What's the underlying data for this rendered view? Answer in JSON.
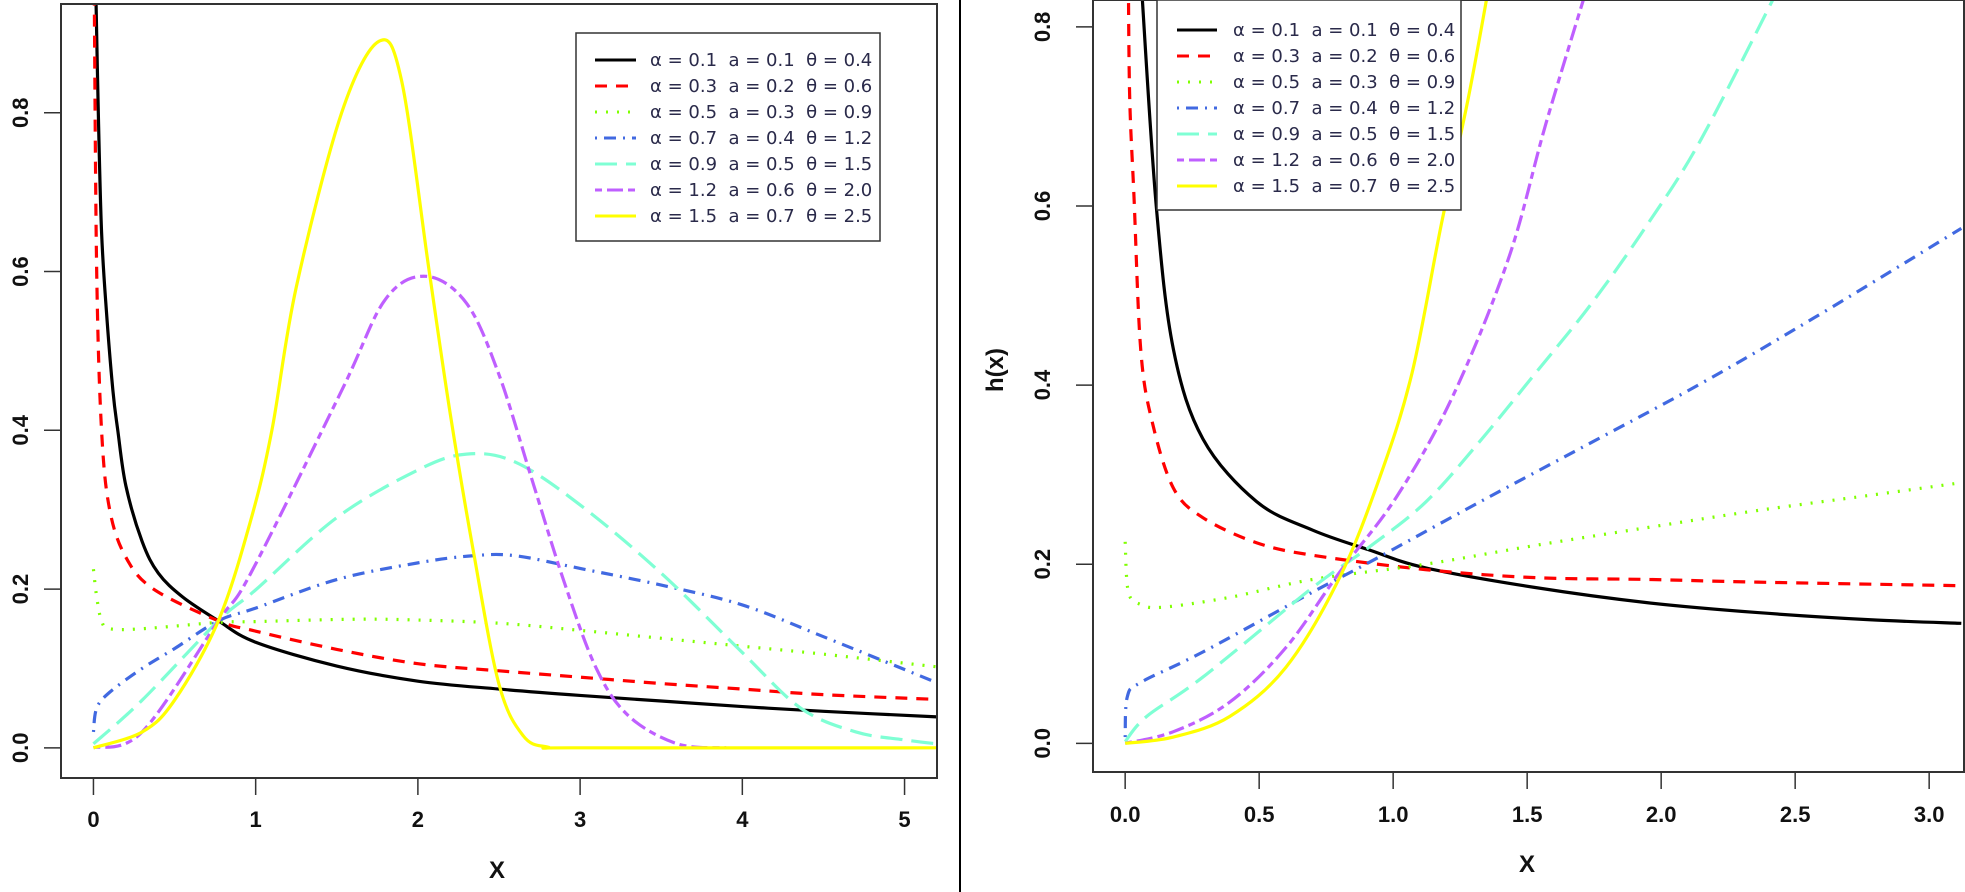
{
  "chart_data": [
    {
      "type": "line",
      "title": "",
      "xlabel": "X",
      "ylabel": "",
      "xlim": [
        -0.2,
        5.2
      ],
      "ylim": [
        -0.038,
        0.937
      ],
      "xticks": [
        0,
        1,
        2,
        3,
        4,
        5
      ],
      "xtick_labels": [
        "0",
        "1",
        "2",
        "3",
        "4",
        "5"
      ],
      "yticks": [
        0,
        0.2,
        0.4,
        0.6,
        0.8
      ],
      "ytick_labels": [
        "0.0",
        "0.2",
        "0.4",
        "0.6",
        "0.8"
      ],
      "grid": false,
      "legend": "top-right",
      "series": [
        {
          "name": "α = 0.1  a = 0.1  θ = 0.4",
          "color": "#000000",
          "dash": "solid",
          "points": [
            [
              0.015,
              0.95
            ],
            [
              0.03,
              0.8
            ],
            [
              0.05,
              0.65
            ],
            [
              0.08,
              0.55
            ],
            [
              0.12,
              0.45
            ],
            [
              0.15,
              0.4
            ],
            [
              0.2,
              0.33
            ],
            [
              0.3,
              0.26
            ],
            [
              0.4,
              0.22
            ],
            [
              0.55,
              0.19
            ],
            [
              0.77,
              0.16
            ],
            [
              1,
              0.133
            ],
            [
              1.5,
              0.103
            ],
            [
              2,
              0.084
            ],
            [
              2.5,
              0.074
            ],
            [
              3,
              0.066
            ],
            [
              3.5,
              0.059
            ],
            [
              4,
              0.052
            ],
            [
              4.5,
              0.046
            ],
            [
              5.2,
              0.039
            ]
          ]
        },
        {
          "name": "α = 0.3  a = 0.2  θ = 0.6",
          "color": "#ff0000",
          "dash": "dashed",
          "points": [
            [
              0.005,
              0.95
            ],
            [
              0.02,
              0.6
            ],
            [
              0.05,
              0.4
            ],
            [
              0.1,
              0.3
            ],
            [
              0.2,
              0.24
            ],
            [
              0.37,
              0.2
            ],
            [
              0.77,
              0.16
            ],
            [
              1,
              0.147
            ],
            [
              1.5,
              0.124
            ],
            [
              2,
              0.106
            ],
            [
              2.5,
              0.097
            ],
            [
              3,
              0.089
            ],
            [
              3.5,
              0.081
            ],
            [
              4,
              0.074
            ],
            [
              4.5,
              0.067
            ],
            [
              5.2,
              0.061
            ]
          ]
        },
        {
          "name": "α = 0.5  a = 0.3  θ = 0.9",
          "color": "#7fff00",
          "dash": "dotted",
          "points": [
            [
              0,
              0.225
            ],
            [
              0.02,
              0.19
            ],
            [
              0.05,
              0.16
            ],
            [
              0.1,
              0.15
            ],
            [
              0.3,
              0.15
            ],
            [
              0.77,
              0.158
            ],
            [
              1,
              0.159
            ],
            [
              1.6,
              0.162
            ],
            [
              2,
              0.161
            ],
            [
              2.5,
              0.157
            ],
            [
              3,
              0.148
            ],
            [
              3.5,
              0.138
            ],
            [
              4,
              0.128
            ],
            [
              4.5,
              0.118
            ],
            [
              5.2,
              0.102
            ]
          ]
        },
        {
          "name": "α = 0.7  a = 0.4  θ = 1.2",
          "color": "#4169e1",
          "dash": "dotdash",
          "points": [
            [
              0,
              0.02
            ],
            [
              0.02,
              0.05
            ],
            [
              0.1,
              0.07
            ],
            [
              0.3,
              0.1
            ],
            [
              0.5,
              0.125
            ],
            [
              0.77,
              0.16
            ],
            [
              1,
              0.176
            ],
            [
              1.5,
              0.212
            ],
            [
              2,
              0.233
            ],
            [
              2.34,
              0.242
            ],
            [
              2.6,
              0.242
            ],
            [
              3,
              0.226
            ],
            [
              3.5,
              0.205
            ],
            [
              4,
              0.18
            ],
            [
              4.5,
              0.14
            ],
            [
              5.2,
              0.082
            ]
          ]
        },
        {
          "name": "α = 0.9  a = 0.5  θ = 1.5",
          "color": "#7fffd4",
          "dash": "longdash",
          "points": [
            [
              0,
              0.005
            ],
            [
              0.3,
              0.06
            ],
            [
              0.77,
              0.16
            ],
            [
              1,
              0.199
            ],
            [
              1.5,
              0.29
            ],
            [
              2,
              0.35
            ],
            [
              2.3,
              0.37
            ],
            [
              2.6,
              0.36
            ],
            [
              3,
              0.306
            ],
            [
              3.5,
              0.22
            ],
            [
              4,
              0.12
            ],
            [
              4.36,
              0.05
            ],
            [
              4.7,
              0.02
            ],
            [
              5,
              0.01
            ],
            [
              5.2,
              0.005
            ]
          ]
        },
        {
          "name": "α = 1.2  a = 0.6  θ = 2.0",
          "color": "#bf5fff",
          "dash": "twodash",
          "points": [
            [
              0,
              0
            ],
            [
              0.3,
              0.02
            ],
            [
              0.77,
              0.16
            ],
            [
              0.97,
              0.22
            ],
            [
              1.53,
              0.45
            ],
            [
              1.8,
              0.565
            ],
            [
              2.05,
              0.594
            ],
            [
              2.3,
              0.56
            ],
            [
              2.5,
              0.47
            ],
            [
              2.7,
              0.34
            ],
            [
              2.9,
              0.21
            ],
            [
              3.1,
              0.1
            ],
            [
              3.3,
              0.04
            ],
            [
              3.6,
              0.005
            ],
            [
              3.9,
              0
            ]
          ]
        },
        {
          "name": "α = 1.5  a = 0.7  θ = 2.5",
          "color": "#ffff00",
          "dash": "solid",
          "points": [
            [
              0,
              0
            ],
            [
              0.3,
              0.02
            ],
            [
              0.5,
              0.06
            ],
            [
              0.77,
              0.16
            ],
            [
              0.97,
              0.287
            ],
            [
              1.1,
              0.4
            ],
            [
              1.25,
              0.58
            ],
            [
              1.53,
              0.8
            ],
            [
              1.76,
              0.89
            ],
            [
              1.9,
              0.84
            ],
            [
              2.07,
              0.6
            ],
            [
              2.2,
              0.42
            ],
            [
              2.34,
              0.25
            ],
            [
              2.5,
              0.08
            ],
            [
              2.65,
              0.015
            ],
            [
              2.8,
              0.001
            ],
            [
              3,
              0
            ],
            [
              5.2,
              0
            ]
          ]
        }
      ]
    },
    {
      "type": "line",
      "title": "",
      "xlabel": "X",
      "ylabel": "h(x)",
      "xlim": [
        -0.12,
        3.13
      ],
      "ylim": [
        -0.032,
        0.83
      ],
      "xticks": [
        0,
        0.5,
        1,
        1.5,
        2,
        2.5,
        3
      ],
      "xtick_labels": [
        "0.0",
        "0.5",
        "1.0",
        "1.5",
        "2.0",
        "2.5",
        "3.0"
      ],
      "yticks": [
        0,
        0.2,
        0.4,
        0.6,
        0.8
      ],
      "ytick_labels": [
        "0.0",
        "0.2",
        "0.4",
        "0.6",
        "0.8"
      ],
      "grid": false,
      "legend": "top-left",
      "series": [
        {
          "name": "α = 0.1  a = 0.1  θ = 0.4",
          "color": "#000000",
          "dash": "solid",
          "points": [
            [
              0.06,
              0.85
            ],
            [
              0.116,
              0.6
            ],
            [
              0.18,
              0.44
            ],
            [
              0.29,
              0.34
            ],
            [
              0.49,
              0.27
            ],
            [
              0.7,
              0.238
            ],
            [
              0.91,
              0.216
            ],
            [
              1.12,
              0.196
            ],
            [
              1.53,
              0.174
            ],
            [
              1.95,
              0.157
            ],
            [
              2.36,
              0.146
            ],
            [
              2.78,
              0.138
            ],
            [
              3.12,
              0.134
            ]
          ]
        },
        {
          "name": "α = 0.3  a = 0.2  θ = 0.6",
          "color": "#ff0000",
          "dash": "dashed",
          "points": [
            [
              0.012,
              0.85
            ],
            [
              0.017,
              0.72
            ],
            [
              0.033,
              0.61
            ],
            [
              0.058,
              0.44
            ],
            [
              0.1,
              0.36
            ],
            [
              0.18,
              0.285
            ],
            [
              0.29,
              0.252
            ],
            [
              0.49,
              0.224
            ],
            [
              0.7,
              0.21
            ],
            [
              1.12,
              0.194
            ],
            [
              1.53,
              0.185
            ],
            [
              1.95,
              0.183
            ],
            [
              2.36,
              0.18
            ],
            [
              3.12,
              0.176
            ]
          ]
        },
        {
          "name": "α = 0.5  a = 0.3  θ = 0.9",
          "color": "#7fff00",
          "dash": "dotted",
          "points": [
            [
              0,
              0.225
            ],
            [
              0.012,
              0.169
            ],
            [
              0.058,
              0.155
            ],
            [
              0.14,
              0.152
            ],
            [
              0.39,
              0.163
            ],
            [
              0.7,
              0.183
            ],
            [
              1.12,
              0.2
            ],
            [
              1.53,
              0.221
            ],
            [
              1.95,
              0.241
            ],
            [
              2.36,
              0.26
            ],
            [
              2.78,
              0.277
            ],
            [
              3.12,
              0.291
            ]
          ]
        },
        {
          "name": "α = 0.7  a = 0.4  θ = 1.2",
          "color": "#4169e1",
          "dash": "dotdash",
          "points": [
            [
              0,
              0.007
            ],
            [
              0.008,
              0.052
            ],
            [
              0.058,
              0.068
            ],
            [
              0.29,
              0.102
            ],
            [
              0.7,
              0.169
            ],
            [
              0.91,
              0.202
            ],
            [
              1.32,
              0.269
            ],
            [
              1.74,
              0.336
            ],
            [
              2.15,
              0.402
            ],
            [
              2.57,
              0.475
            ],
            [
              3.12,
              0.575
            ]
          ]
        },
        {
          "name": "α = 0.9  a = 0.5  θ = 1.5",
          "color": "#7fffd4",
          "dash": "longdash",
          "points": [
            [
              0,
              0.002
            ],
            [
              0.08,
              0.03
            ],
            [
              0.29,
              0.074
            ],
            [
              0.7,
              0.174
            ],
            [
              0.91,
              0.219
            ],
            [
              1.12,
              0.269
            ],
            [
              1.32,
              0.336
            ],
            [
              1.53,
              0.413
            ],
            [
              1.74,
              0.491
            ],
            [
              1.95,
              0.58
            ],
            [
              2.15,
              0.675
            ],
            [
              2.45,
              0.85
            ]
          ]
        },
        {
          "name": "α = 1.2  a = 0.6  θ = 2.0",
          "color": "#bf5fff",
          "dash": "twodash",
          "points": [
            [
              0,
              0
            ],
            [
              0.18,
              0.013
            ],
            [
              0.39,
              0.046
            ],
            [
              0.6,
              0.107
            ],
            [
              0.8,
              0.191
            ],
            [
              1.01,
              0.274
            ],
            [
              1.22,
              0.386
            ],
            [
              1.43,
              0.541
            ],
            [
              1.57,
              0.692
            ],
            [
              1.73,
              0.85
            ]
          ]
        },
        {
          "name": "α = 1.5  a = 0.7  θ = 2.5",
          "color": "#ffff00",
          "dash": "solid",
          "points": [
            [
              0,
              0
            ],
            [
              0.18,
              0.007
            ],
            [
              0.39,
              0.03
            ],
            [
              0.6,
              0.085
            ],
            [
              0.8,
              0.185
            ],
            [
              0.95,
              0.297
            ],
            [
              1.07,
              0.413
            ],
            [
              1.18,
              0.58
            ],
            [
              1.28,
              0.72
            ],
            [
              1.36,
              0.85
            ]
          ]
        }
      ]
    }
  ]
}
